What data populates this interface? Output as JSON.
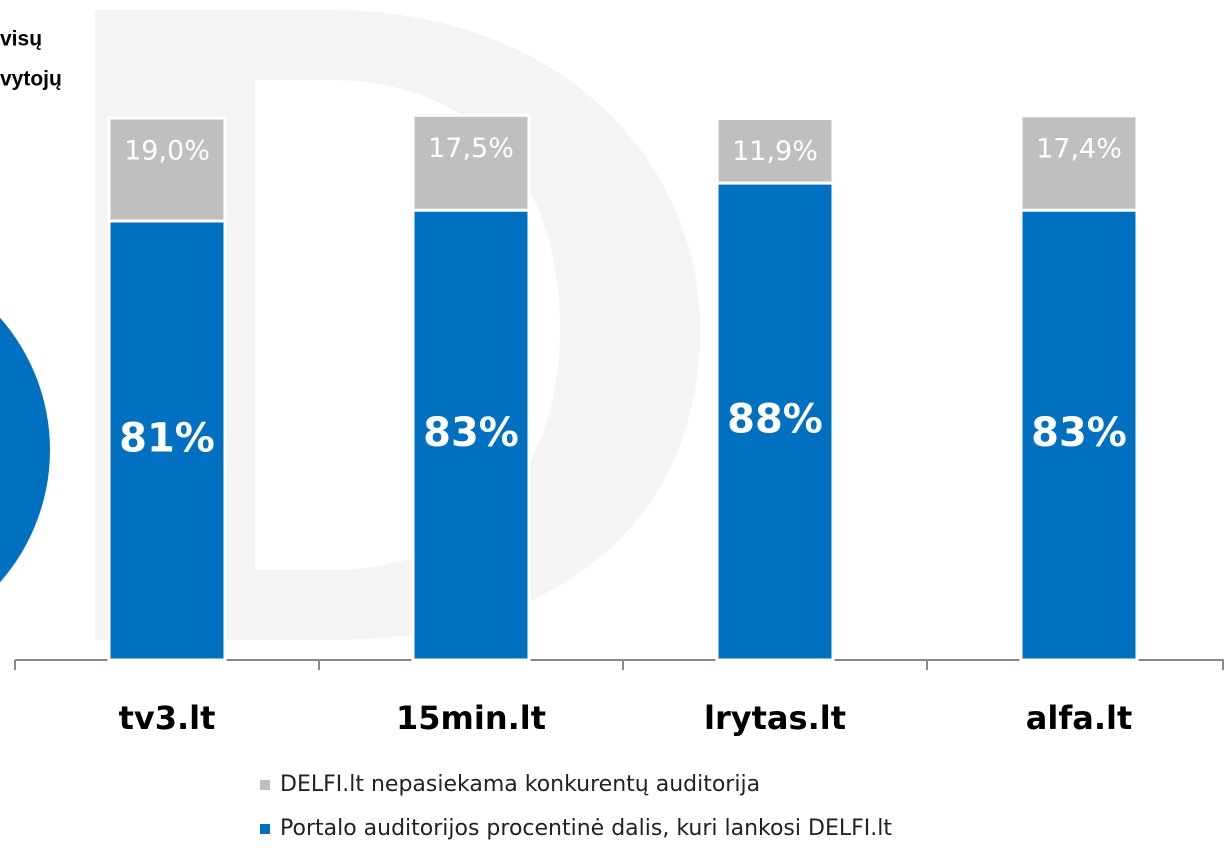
{
  "chart_data": {
    "type": "stacked_bar",
    "annotations": [
      "visų",
      "vytojų"
    ],
    "categories": [
      "tv3.lt",
      "15min.lt",
      "lrytas.lt",
      "alfa.lt"
    ],
    "series": [
      {
        "name": "Portalo auditorijos procentinė dalis, kuri lankosi DELFI.lt",
        "color": "#0070c0",
        "values": [
          81,
          83,
          88,
          83
        ],
        "value_labels": [
          "81%",
          "83%",
          "88%",
          "83%"
        ]
      },
      {
        "name": "DELFI.lt nepasiekama konkurentų auditorija",
        "color": "#bfbfbf",
        "values": [
          19.0,
          17.5,
          11.9,
          17.4
        ],
        "value_labels": [
          "19,0%",
          "17,5%",
          "11,9%",
          "17,4%"
        ]
      }
    ]
  }
}
